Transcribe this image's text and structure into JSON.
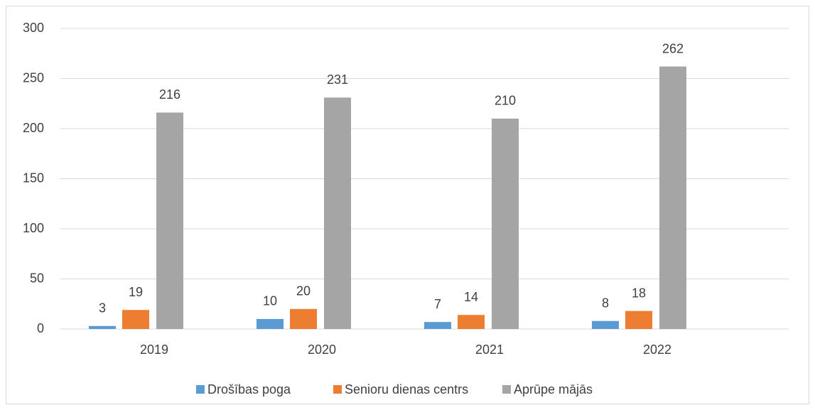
{
  "chart_data": {
    "type": "bar",
    "categories": [
      "2019",
      "2020",
      "2021",
      "2022"
    ],
    "series": [
      {
        "name": "Drošības poga",
        "color": "#5b9bd5",
        "values": [
          3,
          10,
          7,
          8
        ]
      },
      {
        "name": "Senioru dienas centrs",
        "color": "#ed7d31",
        "values": [
          19,
          20,
          14,
          18
        ]
      },
      {
        "name": "Aprūpe mājās",
        "color": "#a5a5a5",
        "values": [
          216,
          231,
          210,
          262
        ]
      }
    ],
    "ylim": [
      0,
      300
    ],
    "yticks": [
      0,
      50,
      100,
      150,
      200,
      250,
      300
    ],
    "grid": true,
    "legend": "bottom"
  }
}
